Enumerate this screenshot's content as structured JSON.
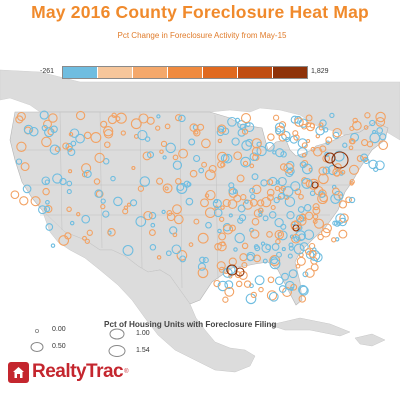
{
  "title": "May 2016 County Foreclosure Heat Map",
  "color_legend": {
    "title": "Pct Change in Foreclosure Activity from May-15",
    "min": "-261",
    "max": "1,829",
    "colors": [
      "#6fbde0",
      "#f6c69b",
      "#f4a86b",
      "#ef8a3f",
      "#e0691f",
      "#c04d12",
      "#8e3209"
    ]
  },
  "size_legend": {
    "title": "Pct of Housing Units with Foreclosure Filing",
    "items": [
      {
        "label": "0.00"
      },
      {
        "label": "0.50"
      },
      {
        "label": "1.00"
      },
      {
        "label": "1.54"
      }
    ]
  },
  "logo": {
    "text": "RealtyTrac",
    "tm": "®"
  },
  "map": {
    "land_color": "#dcdcdc",
    "water_color": "#ffffff",
    "border_color": "#b5b5b5",
    "decline_color": "#6fbde0",
    "increase_color": "#f2a264"
  }
}
